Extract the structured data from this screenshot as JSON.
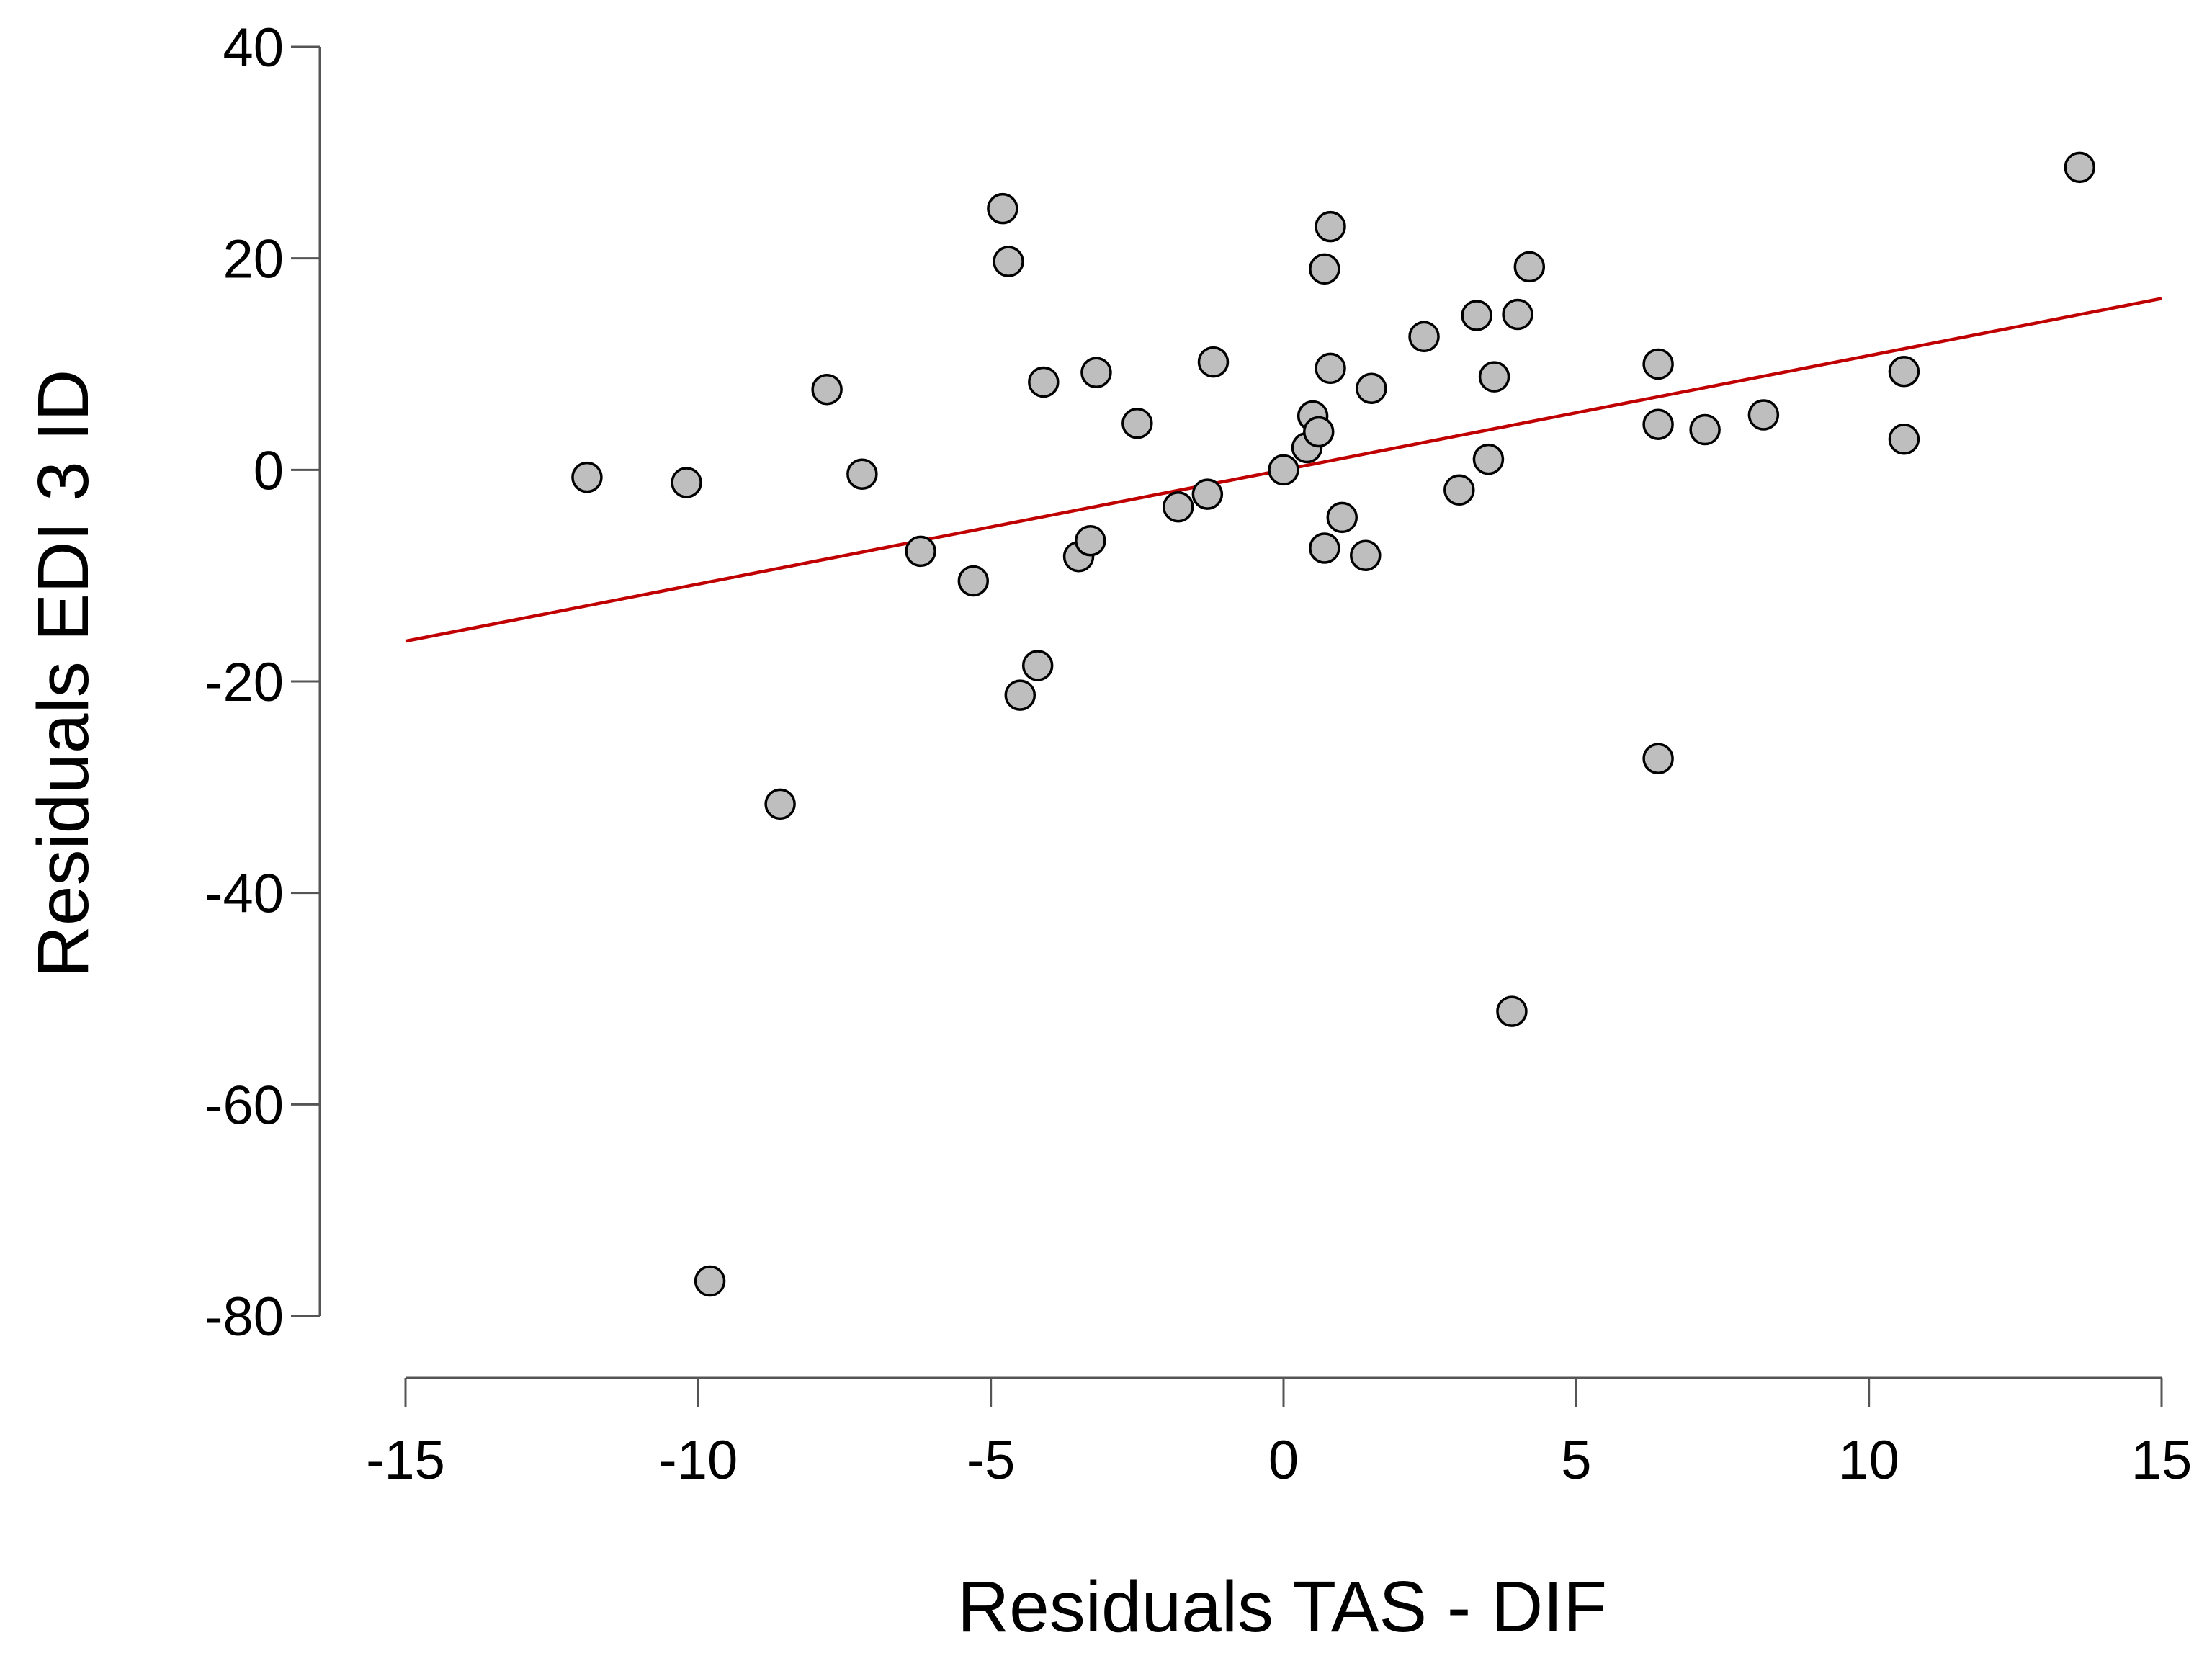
{
  "chart_data": {
    "type": "scatter",
    "title": "",
    "xlabel": "Residuals TAS - DIF",
    "ylabel": "Residuals EDI 3 ID",
    "xlim": [
      -15,
      15
    ],
    "ylim": [
      -80,
      40
    ],
    "xticks": [
      -15,
      -10,
      -5,
      0,
      5,
      10,
      15
    ],
    "yticks": [
      -80,
      -60,
      -40,
      -20,
      0,
      20,
      40
    ],
    "xtick_labels": [
      "-15",
      "-10",
      "-5",
      "0",
      "5",
      "10",
      "15"
    ],
    "ytick_labels": [
      "-80",
      "-60",
      "-40",
      "-20",
      "0",
      "20",
      "40"
    ],
    "grid": false,
    "point_color": "#bebebe",
    "line_color": "#c00000",
    "regression_line": {
      "x": [
        -15,
        15
      ],
      "y": [
        -16.2,
        16.2
      ]
    },
    "points": [
      {
        "x": -11.9,
        "y": -0.7
      },
      {
        "x": -10.2,
        "y": -1.2
      },
      {
        "x": -9.8,
        "y": -76.7
      },
      {
        "x": -8.6,
        "y": -31.6
      },
      {
        "x": -7.8,
        "y": 7.6
      },
      {
        "x": -7.2,
        "y": -0.4
      },
      {
        "x": -6.2,
        "y": -7.7
      },
      {
        "x": -5.3,
        "y": -10.5
      },
      {
        "x": -4.8,
        "y": 24.7
      },
      {
        "x": -4.7,
        "y": 19.7
      },
      {
        "x": -4.5,
        "y": -21.3
      },
      {
        "x": -4.2,
        "y": -18.5
      },
      {
        "x": -4.1,
        "y": 8.3
      },
      {
        "x": -3.5,
        "y": -8.2
      },
      {
        "x": -3.3,
        "y": -6.7
      },
      {
        "x": -3.2,
        "y": 9.2
      },
      {
        "x": -2.5,
        "y": 4.4
      },
      {
        "x": -1.8,
        "y": -3.5
      },
      {
        "x": -1.3,
        "y": -2.3
      },
      {
        "x": -1.2,
        "y": 10.2
      },
      {
        "x": 0.0,
        "y": 0.0
      },
      {
        "x": 0.4,
        "y": 2.1
      },
      {
        "x": 0.5,
        "y": 5.1
      },
      {
        "x": 0.6,
        "y": 3.6
      },
      {
        "x": 0.7,
        "y": -7.4
      },
      {
        "x": 0.7,
        "y": 19.0
      },
      {
        "x": 0.8,
        "y": 23.0
      },
      {
        "x": 0.8,
        "y": 9.6
      },
      {
        "x": 1.0,
        "y": -4.5
      },
      {
        "x": 1.4,
        "y": -8.1
      },
      {
        "x": 1.5,
        "y": 7.7
      },
      {
        "x": 2.4,
        "y": 12.6
      },
      {
        "x": 3.0,
        "y": -1.9
      },
      {
        "x": 3.3,
        "y": 14.6
      },
      {
        "x": 3.5,
        "y": 1.0
      },
      {
        "x": 3.6,
        "y": 8.8
      },
      {
        "x": 3.9,
        "y": -51.2
      },
      {
        "x": 4.0,
        "y": 14.7
      },
      {
        "x": 4.2,
        "y": 19.2
      },
      {
        "x": 6.4,
        "y": 10.0
      },
      {
        "x": 6.4,
        "y": 4.3
      },
      {
        "x": 6.4,
        "y": -27.3
      },
      {
        "x": 7.2,
        "y": 3.8
      },
      {
        "x": 8.2,
        "y": 5.2
      },
      {
        "x": 10.6,
        "y": 9.3
      },
      {
        "x": 10.6,
        "y": 2.9
      },
      {
        "x": 13.6,
        "y": 28.6
      }
    ]
  }
}
